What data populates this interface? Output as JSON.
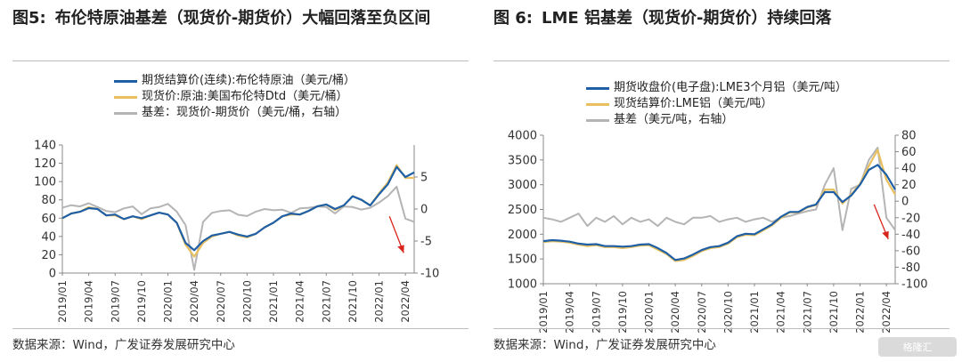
{
  "charts": [
    {
      "fig_num": "图5:",
      "title": "布伦特原油基差（现货价-期货价）大幅回落至负区间",
      "source": "数据来源：Wind，广发证券发展研究中心"
    },
    {
      "fig_num": "图 6:",
      "title": "LME 铝基差（现货价-期货价）持续回落",
      "source": "数据来源：Wind，广发证券发展研究中心"
    }
  ],
  "chart_data": [
    {
      "type": "line",
      "x": [
        "2019/01",
        "2019/02",
        "2019/03",
        "2019/04",
        "2019/05",
        "2019/06",
        "2019/07",
        "2019/08",
        "2019/09",
        "2019/10",
        "2019/11",
        "2019/12",
        "2020/01",
        "2020/02",
        "2020/03",
        "2020/04",
        "2020/05",
        "2020/06",
        "2020/07",
        "2020/08",
        "2020/09",
        "2020/10",
        "2020/11",
        "2020/12",
        "2021/01",
        "2021/02",
        "2021/03",
        "2021/04",
        "2021/05",
        "2021/06",
        "2021/07",
        "2021/08",
        "2021/09",
        "2021/10",
        "2021/11",
        "2021/12",
        "2022/01",
        "2022/02",
        "2022/03",
        "2022/04",
        "2022/05"
      ],
      "x_tick_labels": [
        "2019/01",
        "2019/04",
        "2019/07",
        "2019/10",
        "2020/01",
        "2020/04",
        "2020/07",
        "2020/10",
        "2021/01",
        "2021/04",
        "2021/07",
        "2021/10",
        "2022/01",
        "2022/04"
      ],
      "series": [
        {
          "name": "期货结算价(连续):布伦特原油（美元/桶）",
          "axis": "left",
          "color": "#1f5fa6",
          "values": [
            60,
            65,
            67,
            71,
            70,
            63,
            64,
            59,
            62,
            60,
            63,
            66,
            64,
            55,
            33,
            25,
            35,
            41,
            43,
            45,
            42,
            40,
            43,
            50,
            55,
            62,
            65,
            64,
            68,
            73,
            75,
            70,
            74,
            84,
            80,
            74,
            86,
            97,
            116,
            105,
            110
          ]
        },
        {
          "name": "现货价:原油:美国布伦特Dtd（美元/桶）",
          "axis": "left",
          "color": "#e8c060",
          "values": [
            60,
            65,
            67,
            72,
            70,
            63,
            63,
            59,
            62,
            59,
            63,
            66,
            64,
            55,
            31,
            18,
            33,
            40,
            43,
            45,
            41,
            39,
            43,
            50,
            55,
            62,
            64,
            64,
            68,
            73,
            75,
            69,
            74,
            84,
            80,
            74,
            87,
            99,
            118,
            104,
            104
          ]
        },
        {
          "name": "基差：现货价-期货价（美元/桶，右轴）",
          "axis": "right",
          "color": "#b4b4b4",
          "values": [
            0.2,
            0.6,
            0.4,
            0.9,
            0.3,
            -0.3,
            -0.5,
            0.1,
            0.4,
            -0.8,
            0.1,
            0.3,
            0.8,
            -0.4,
            -2.5,
            -9.5,
            -2.0,
            -0.6,
            -0.3,
            -0.2,
            -0.9,
            -1.1,
            -0.4,
            0,
            -0.2,
            -0.1,
            -0.6,
            0.1,
            0.2,
            0.4,
            0.3,
            -0.7,
            0.4,
            0.3,
            -0.1,
            0.2,
            1.0,
            2.0,
            3.5,
            -1.5,
            -2.0
          ]
        }
      ],
      "y_left_lim": [
        0,
        140
      ],
      "y_left_ticks": [
        0,
        20,
        40,
        60,
        80,
        100,
        120,
        140
      ],
      "y_right_lim": [
        -10,
        10
      ],
      "y_right_ticks": [
        -10,
        -5,
        0,
        5
      ],
      "legend_position": "top-center",
      "grid": false,
      "annotation": "red-arrow-down"
    },
    {
      "type": "line",
      "x": [
        "2019/01",
        "2019/02",
        "2019/03",
        "2019/04",
        "2019/05",
        "2019/06",
        "2019/07",
        "2019/08",
        "2019/09",
        "2019/10",
        "2019/11",
        "2019/12",
        "2020/01",
        "2020/02",
        "2020/03",
        "2020/04",
        "2020/05",
        "2020/06",
        "2020/07",
        "2020/08",
        "2020/09",
        "2020/10",
        "2020/11",
        "2020/12",
        "2021/01",
        "2021/02",
        "2021/03",
        "2021/04",
        "2021/05",
        "2021/06",
        "2021/07",
        "2021/08",
        "2021/09",
        "2021/10",
        "2021/11",
        "2021/12",
        "2022/01",
        "2022/02",
        "2022/03",
        "2022/04",
        "2022/05"
      ],
      "x_tick_labels": [
        "2019/01",
        "2019/04",
        "2019/07",
        "2019/10",
        "2020/01",
        "2020/04",
        "2020/07",
        "2020/10",
        "2021/01",
        "2021/04",
        "2021/07",
        "2021/10",
        "2022/01",
        "2022/04"
      ],
      "series": [
        {
          "name": "期货收盘价(电子盘):LME3个月铝（美元/吨）",
          "axis": "left",
          "color": "#1f5fa6",
          "values": [
            1860,
            1880,
            1870,
            1850,
            1810,
            1790,
            1800,
            1760,
            1760,
            1750,
            1760,
            1790,
            1800,
            1720,
            1620,
            1480,
            1510,
            1590,
            1680,
            1740,
            1760,
            1830,
            1960,
            2010,
            2000,
            2100,
            2200,
            2350,
            2450,
            2450,
            2550,
            2600,
            2850,
            2850,
            2650,
            2780,
            3000,
            3300,
            3400,
            3200,
            2900
          ]
        },
        {
          "name": "现货结算价:LME铝（美元/吨）",
          "axis": "left",
          "color": "#e8c060",
          "values": [
            1840,
            1860,
            1850,
            1830,
            1790,
            1760,
            1780,
            1740,
            1740,
            1720,
            1740,
            1770,
            1780,
            1690,
            1600,
            1460,
            1480,
            1560,
            1660,
            1720,
            1740,
            1810,
            1940,
            1990,
            1980,
            2080,
            2180,
            2330,
            2440,
            2440,
            2540,
            2590,
            2900,
            2900,
            2620,
            2800,
            3020,
            3380,
            3700,
            3100,
            2800
          ]
        },
        {
          "name": "基差（美元/吨，右轴）",
          "axis": "right",
          "color": "#b4b4b4",
          "values": [
            -20,
            -22,
            -25,
            -20,
            -15,
            -30,
            -20,
            -25,
            -18,
            -28,
            -20,
            -25,
            -22,
            -30,
            -20,
            -25,
            -28,
            -20,
            -20,
            -18,
            -25,
            -22,
            -20,
            -25,
            -22,
            -20,
            -25,
            -20,
            -18,
            -15,
            -12,
            -10,
            20,
            40,
            -35,
            15,
            20,
            50,
            65,
            -20,
            -35
          ]
        }
      ],
      "y_left_lim": [
        1000,
        4000
      ],
      "y_left_ticks": [
        1000,
        1500,
        2000,
        2500,
        3000,
        3500,
        4000
      ],
      "y_right_lim": [
        -100,
        80
      ],
      "y_right_ticks": [
        -100,
        -80,
        -60,
        -40,
        -20,
        0,
        20,
        40,
        60,
        80
      ],
      "legend_position": "top-center",
      "grid": false,
      "annotation": "red-arrow-down"
    }
  ],
  "watermark": "格隆汇"
}
